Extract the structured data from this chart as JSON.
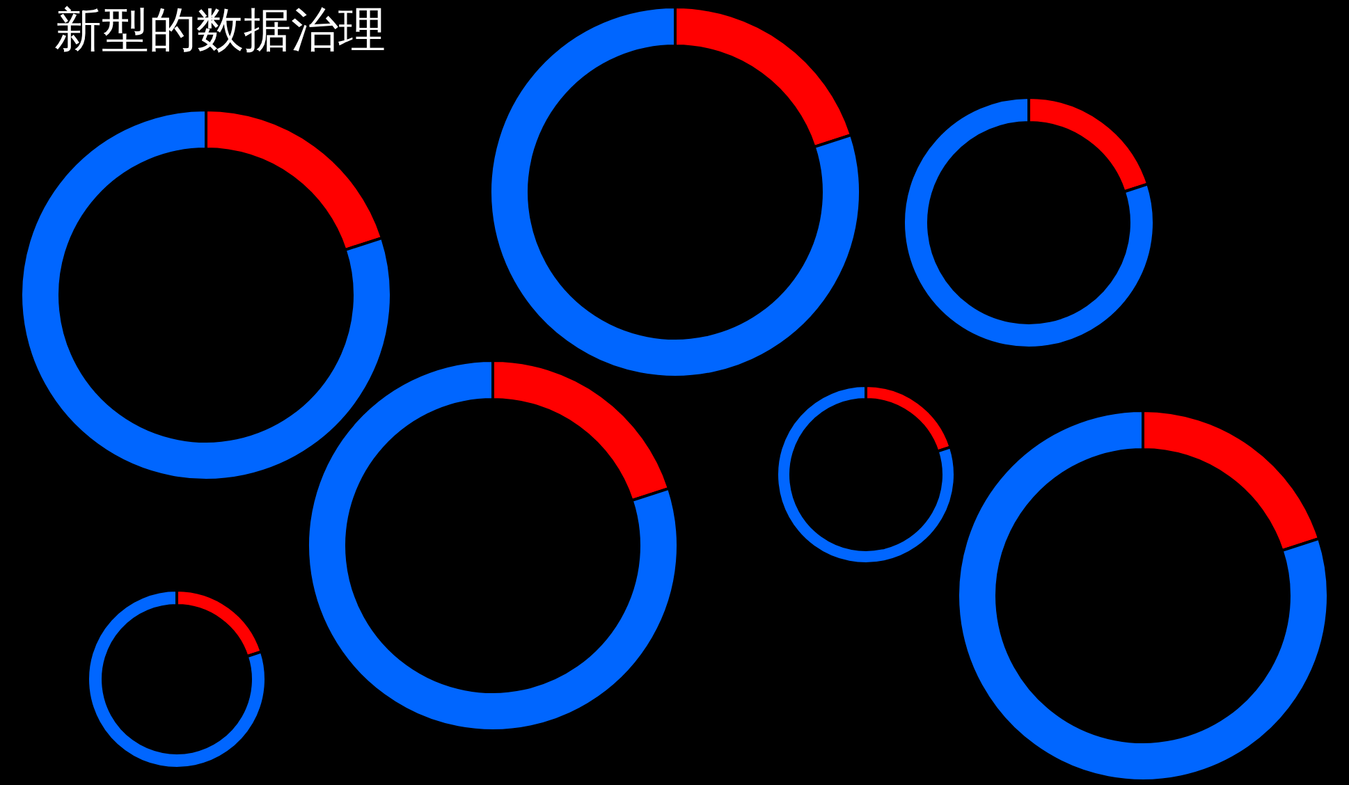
{
  "chart_data": [
    {
      "type": "donut",
      "title": "新型的数据治理",
      "categories": [
        null,
        null
      ],
      "values": [
        20,
        80
      ],
      "colors": [
        "#ff0000",
        "#0066ff"
      ]
    },
    {
      "type": "donut",
      "categories": [
        null,
        null
      ],
      "values": [
        20,
        80
      ],
      "colors": [
        "#ff0000",
        "#0066ff"
      ]
    },
    {
      "type": "donut",
      "categories": [
        null,
        null
      ],
      "values": [
        20,
        80
      ],
      "colors": [
        "#ff0000",
        "#0066ff"
      ]
    },
    {
      "type": "donut",
      "categories": [
        null,
        null
      ],
      "values": [
        20,
        80
      ],
      "colors": [
        "#ff0000",
        "#0066ff"
      ]
    },
    {
      "type": "donut",
      "categories": [
        null,
        null
      ],
      "values": [
        20,
        80
      ],
      "colors": [
        "#ff0000",
        "#0066ff"
      ]
    },
    {
      "type": "donut",
      "categories": [
        null,
        null
      ],
      "values": [
        20,
        80
      ],
      "colors": [
        "#ff0000",
        "#0066ff"
      ]
    },
    {
      "type": "donut",
      "categories": [
        null,
        null
      ],
      "values": [
        20,
        80
      ],
      "colors": [
        "#ff0000",
        "#0066ff"
      ]
    }
  ]
}
